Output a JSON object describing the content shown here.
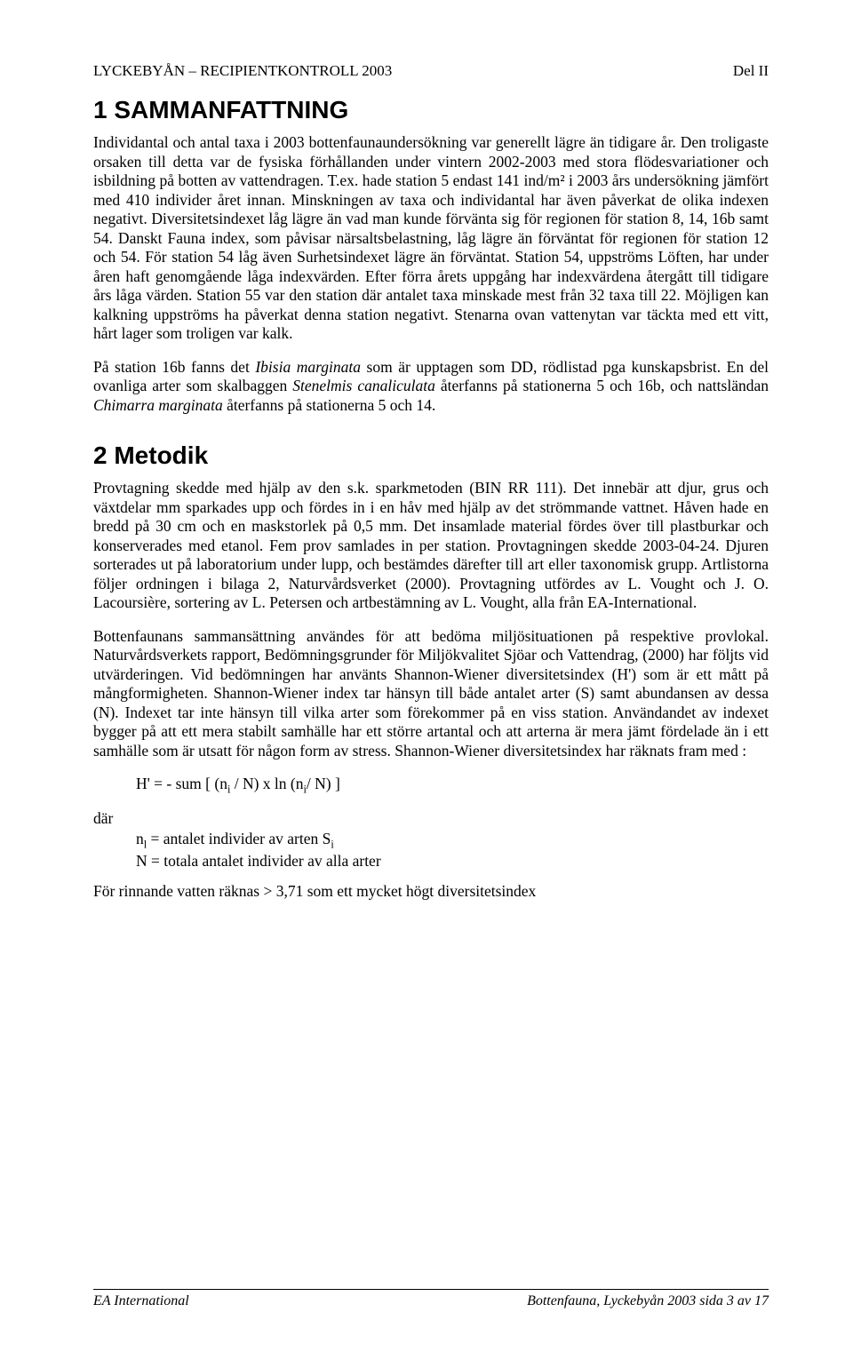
{
  "header": {
    "left": "LYCKEBYÅN – RECIPIENTKONTROLL 2003",
    "right": "Del II"
  },
  "section1": {
    "number": "1",
    "title": "SAMMANFATTNING",
    "para1": "Individantal och antal taxa i 2003 bottenfaunaundersökning var generellt lägre än tidigare år. Den troligaste orsaken till detta var de fysiska förhållanden under vintern 2002-2003 med stora flödesvariationer och isbildning på botten av vattendragen. T.ex. hade station 5 endast 141 ind/m² i 2003 års undersökning jämfört med 410 individer året innan. Minskningen av taxa och individantal har även påverkat de olika indexen negativt. Diversitetsindexet låg lägre än vad man kunde förvänta sig för regionen för station 8, 14, 16b samt 54. Danskt Fauna index, som påvisar närsaltsbelastning, låg lägre än förväntat för regionen för station 12 och 54. För station 54 låg även Surhetsindexet lägre än förväntat. Station 54, uppströms Löften, har under åren haft genomgående låga indexvärden. Efter förra årets uppgång har indexvärdena återgått till tidigare års låga värden. Station 55 var den station där antalet taxa minskade mest från 32 taxa till 22. Möjligen kan kalkning uppströms ha påverkat denna station negativt. Stenarna ovan vattenytan var täckta med ett vitt, hårt lager som troligen var kalk.",
    "para2_pre": "På station 16b fanns det ",
    "para2_it1": "Ibisia marginata",
    "para2_mid1": " som är upptagen som DD, rödlistad pga kunskapsbrist. En del ovanliga arter som skalbaggen ",
    "para2_it2": "Stenelmis canaliculata",
    "para2_mid2": " återfanns på stationerna 5 och 16b, och nattsländan ",
    "para2_it3": "Chimarra marginata",
    "para2_end": " återfanns på stationerna 5 och 14."
  },
  "section2": {
    "number": "2",
    "title": "Metodik",
    "para1": "Provtagning skedde med hjälp av den s.k. sparkmetoden (BIN RR 111). Det innebär att djur, grus och växtdelar mm sparkades upp och fördes in i en håv med hjälp av det strömmande vattnet. Håven hade en bredd på 30 cm och en maskstorlek på 0,5 mm. Det insamlade material fördes över till plastburkar och konserverades med etanol. Fem prov samlades in per station. Provtagningen skedde 2003-04-24. Djuren sorterades ut på laboratorium under lupp, och bestämdes därefter till art eller taxonomisk grupp. Artlistorna följer ordningen i bilaga 2, Naturvårdsverket (2000). Provtagning utfördes av L. Vought och J. O. Lacoursière, sortering av L. Petersen och artbestämning av L. Vought, alla från EA-International.",
    "para2": "Bottenfaunans sammansättning användes för att bedöma miljösituationen på respektive provlokal. Naturvårdsverkets rapport, Bedömningsgrunder för Miljökvalitet Sjöar och Vattendrag, (2000) har följts vid utvärderingen. Vid bedömningen har använts Shannon-Wiener diversitetsindex (H') som är ett mått på mångformigheten. Shannon-Wiener index tar hänsyn till både antalet arter (S) samt abundansen av dessa (N). Indexet tar inte hänsyn till vilka arter som förekommer på en viss station. Användandet av indexet bygger på att ett mera stabilt samhälle har ett större artantal och att arterna är mera jämt fördelade än i ett samhälle som är utsatt för någon form av stress. Shannon-Wiener diversitetsindex har räknats fram med :"
  },
  "formula": {
    "text": "H' =  - sum [ (n",
    "sub1": "i",
    "mid1": " / N)  x  ln (n",
    "sub2": "i",
    "mid2": "/ N) ]"
  },
  "where": {
    "label": "där",
    "line1_pre": "n",
    "line1_sub": "l",
    "line1_mid": " = antalet individer av arten S",
    "line1_sub2": "i",
    "line2": "N = totala antalet individer av alla arter"
  },
  "final": "För rinnande vatten räknas > 3,71 som ett mycket högt diversitetsindex",
  "footer": {
    "left": "EA International",
    "right": "Bottenfauna, Lyckebyån 2003  sida 3 av 17"
  }
}
